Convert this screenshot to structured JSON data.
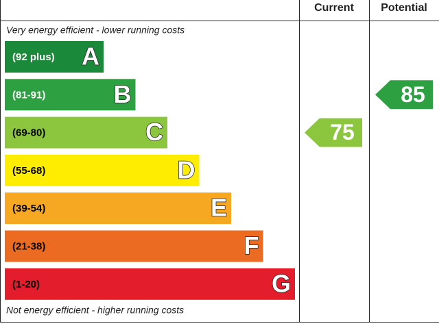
{
  "chart_data": {
    "type": "epc",
    "columns": [
      "Current",
      "Potential"
    ],
    "top_label": "Very energy efficient - lower running costs",
    "bottom_label": "Not energy efficient - higher running costs",
    "bands": [
      {
        "range": "(92 plus)",
        "letter": "A",
        "color": "#1a8a3a",
        "text_color": "#ffffff"
      },
      {
        "range": "(81-91)",
        "letter": "B",
        "color": "#2da042",
        "text_color": "#ffffff"
      },
      {
        "range": "(69-80)",
        "letter": "C",
        "color": "#8cc63f",
        "text_color": "#000000"
      },
      {
        "range": "(55-68)",
        "letter": "D",
        "color": "#ffed00",
        "text_color": "#000000"
      },
      {
        "range": "(39-54)",
        "letter": "E",
        "color": "#f7a823",
        "text_color": "#000000"
      },
      {
        "range": "(21-38)",
        "letter": "F",
        "color": "#ec6b22",
        "text_color": "#000000"
      },
      {
        "range": "(1-20)",
        "letter": "G",
        "color": "#e31d2c",
        "text_color": "#000000"
      }
    ],
    "current": 75,
    "potential": 85
  }
}
